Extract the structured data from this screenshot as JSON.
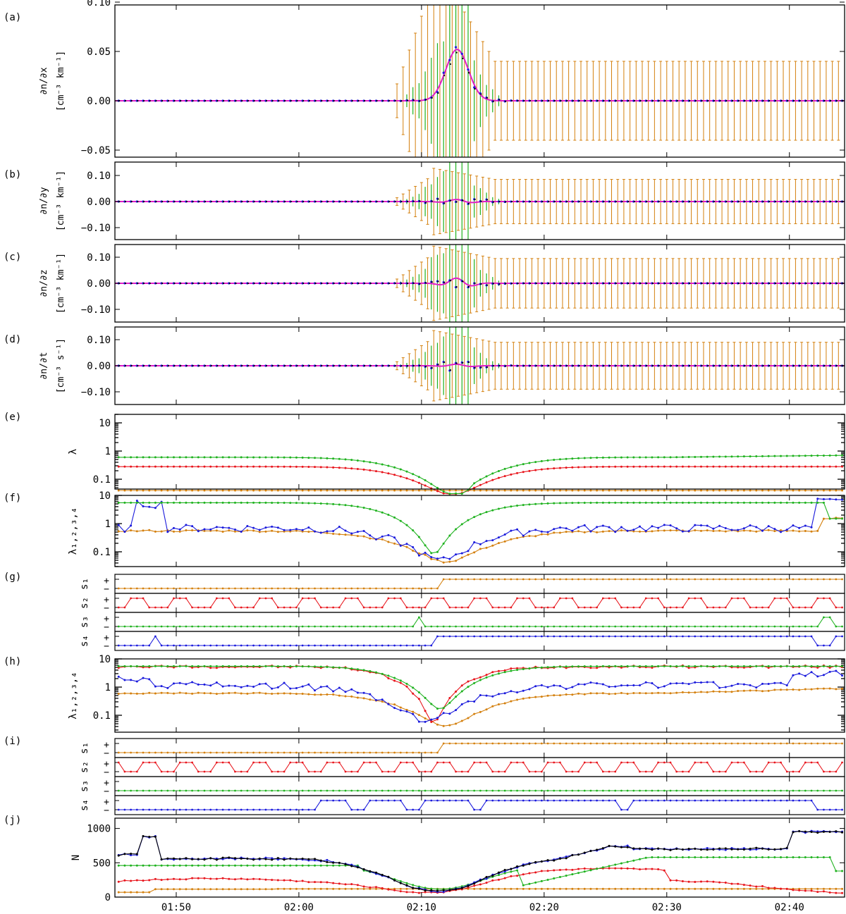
{
  "colors": {
    "green": "#1fb21f",
    "orange": "#d4800e",
    "red": "#e8151c",
    "blue": "#1a1adc",
    "black": "#000000",
    "magenta": "#e01ec8"
  },
  "xaxis": {
    "range": [
      105,
      164.5
    ],
    "ticks": [
      110,
      120,
      130,
      140,
      150,
      160
    ],
    "tick_labels": [
      "01:50",
      "02:00",
      "02:10",
      "02:20",
      "02:30",
      "02:40"
    ]
  },
  "chart_data": [
    {
      "panel": "a",
      "label": "(a)",
      "type": "scatter",
      "ylabel": "∂n/∂x",
      "yunit": "[cm⁻³ km⁻¹]",
      "ylim": [
        -0.075,
        0.125
      ],
      "yticks": [
        -0.05,
        0,
        0.05,
        0.1
      ],
      "ytick_labels": [
        "−0.05",
        "0.00",
        "0.05",
        "0.10"
      ],
      "series": [
        {
          "color": "green",
          "kind": "error bars"
        },
        {
          "color": "orange",
          "kind": "error bars"
        },
        {
          "color": "blue",
          "kind": "points"
        },
        {
          "color": "magenta",
          "kind": "model line"
        }
      ]
    },
    {
      "panel": "b",
      "label": "(b)",
      "type": "scatter",
      "ylabel": "∂n/∂y",
      "yunit": "[cm⁻³ km⁻¹]",
      "ylim": [
        -0.15,
        0.15
      ],
      "yticks": [
        -0.1,
        0,
        0.1
      ],
      "ytick_labels": [
        "−0.10",
        "0.00",
        "0.10"
      ]
    },
    {
      "panel": "c",
      "label": "(c)",
      "type": "scatter",
      "ylabel": "∂n/∂z",
      "yunit": "[cm⁻³ km⁻¹]",
      "ylim": [
        -0.15,
        0.15
      ],
      "yticks": [
        -0.1,
        0,
        0.1
      ],
      "ytick_labels": [
        "−0.10",
        "0.00",
        "0.10"
      ]
    },
    {
      "panel": "d",
      "label": "(d)",
      "type": "scatter",
      "ylabel": "∂n/∂t",
      "yunit": "[cm⁻³ s⁻¹]",
      "ylim": [
        -0.15,
        0.15
      ],
      "yticks": [
        -0.1,
        0,
        0.1
      ],
      "ytick_labels": [
        "−0.10",
        "0.00",
        "0.10"
      ]
    },
    {
      "panel": "e",
      "label": "(e)",
      "type": "line",
      "ylabel": "λ",
      "yscale": "log",
      "ylim": [
        0.01,
        20
      ],
      "yticks": [
        0.1,
        1,
        10
      ],
      "ytick_labels": [
        "0.1",
        "1",
        "10"
      ]
    },
    {
      "panel": "f",
      "label": "(f)",
      "type": "line",
      "ylabel": "λ₁,₂,₃,₄",
      "yscale": "log",
      "ylim": [
        0.01,
        10
      ],
      "yticks": [
        0.1,
        1,
        10
      ],
      "ytick_labels": [
        "0.1",
        "1",
        "10"
      ]
    },
    {
      "panel": "g",
      "label": "(g)",
      "type": "line",
      "ylabels": [
        "s₁",
        "s₂",
        "s₃",
        "s₄"
      ],
      "signs": [
        "+",
        "−"
      ]
    },
    {
      "panel": "h",
      "label": "(h)",
      "type": "line",
      "ylabel": "λ₁,₂,₃,₄",
      "yscale": "log",
      "ylim": [
        0.01,
        10
      ],
      "yticks": [
        0.1,
        1,
        10
      ],
      "ytick_labels": [
        "0.1",
        "1",
        "10"
      ]
    },
    {
      "panel": "i",
      "label": "(i)",
      "type": "line",
      "ylabels": [
        "s₁",
        "s₂",
        "s₃",
        "s₄"
      ],
      "signs": [
        "+",
        "−"
      ]
    },
    {
      "panel": "j",
      "label": "(j)",
      "type": "line",
      "ylabel": "N",
      "ylim": [
        0,
        1150
      ],
      "yticks": [
        0,
        500,
        1000
      ],
      "ytick_labels": [
        "0",
        "500",
        "1000"
      ]
    }
  ]
}
